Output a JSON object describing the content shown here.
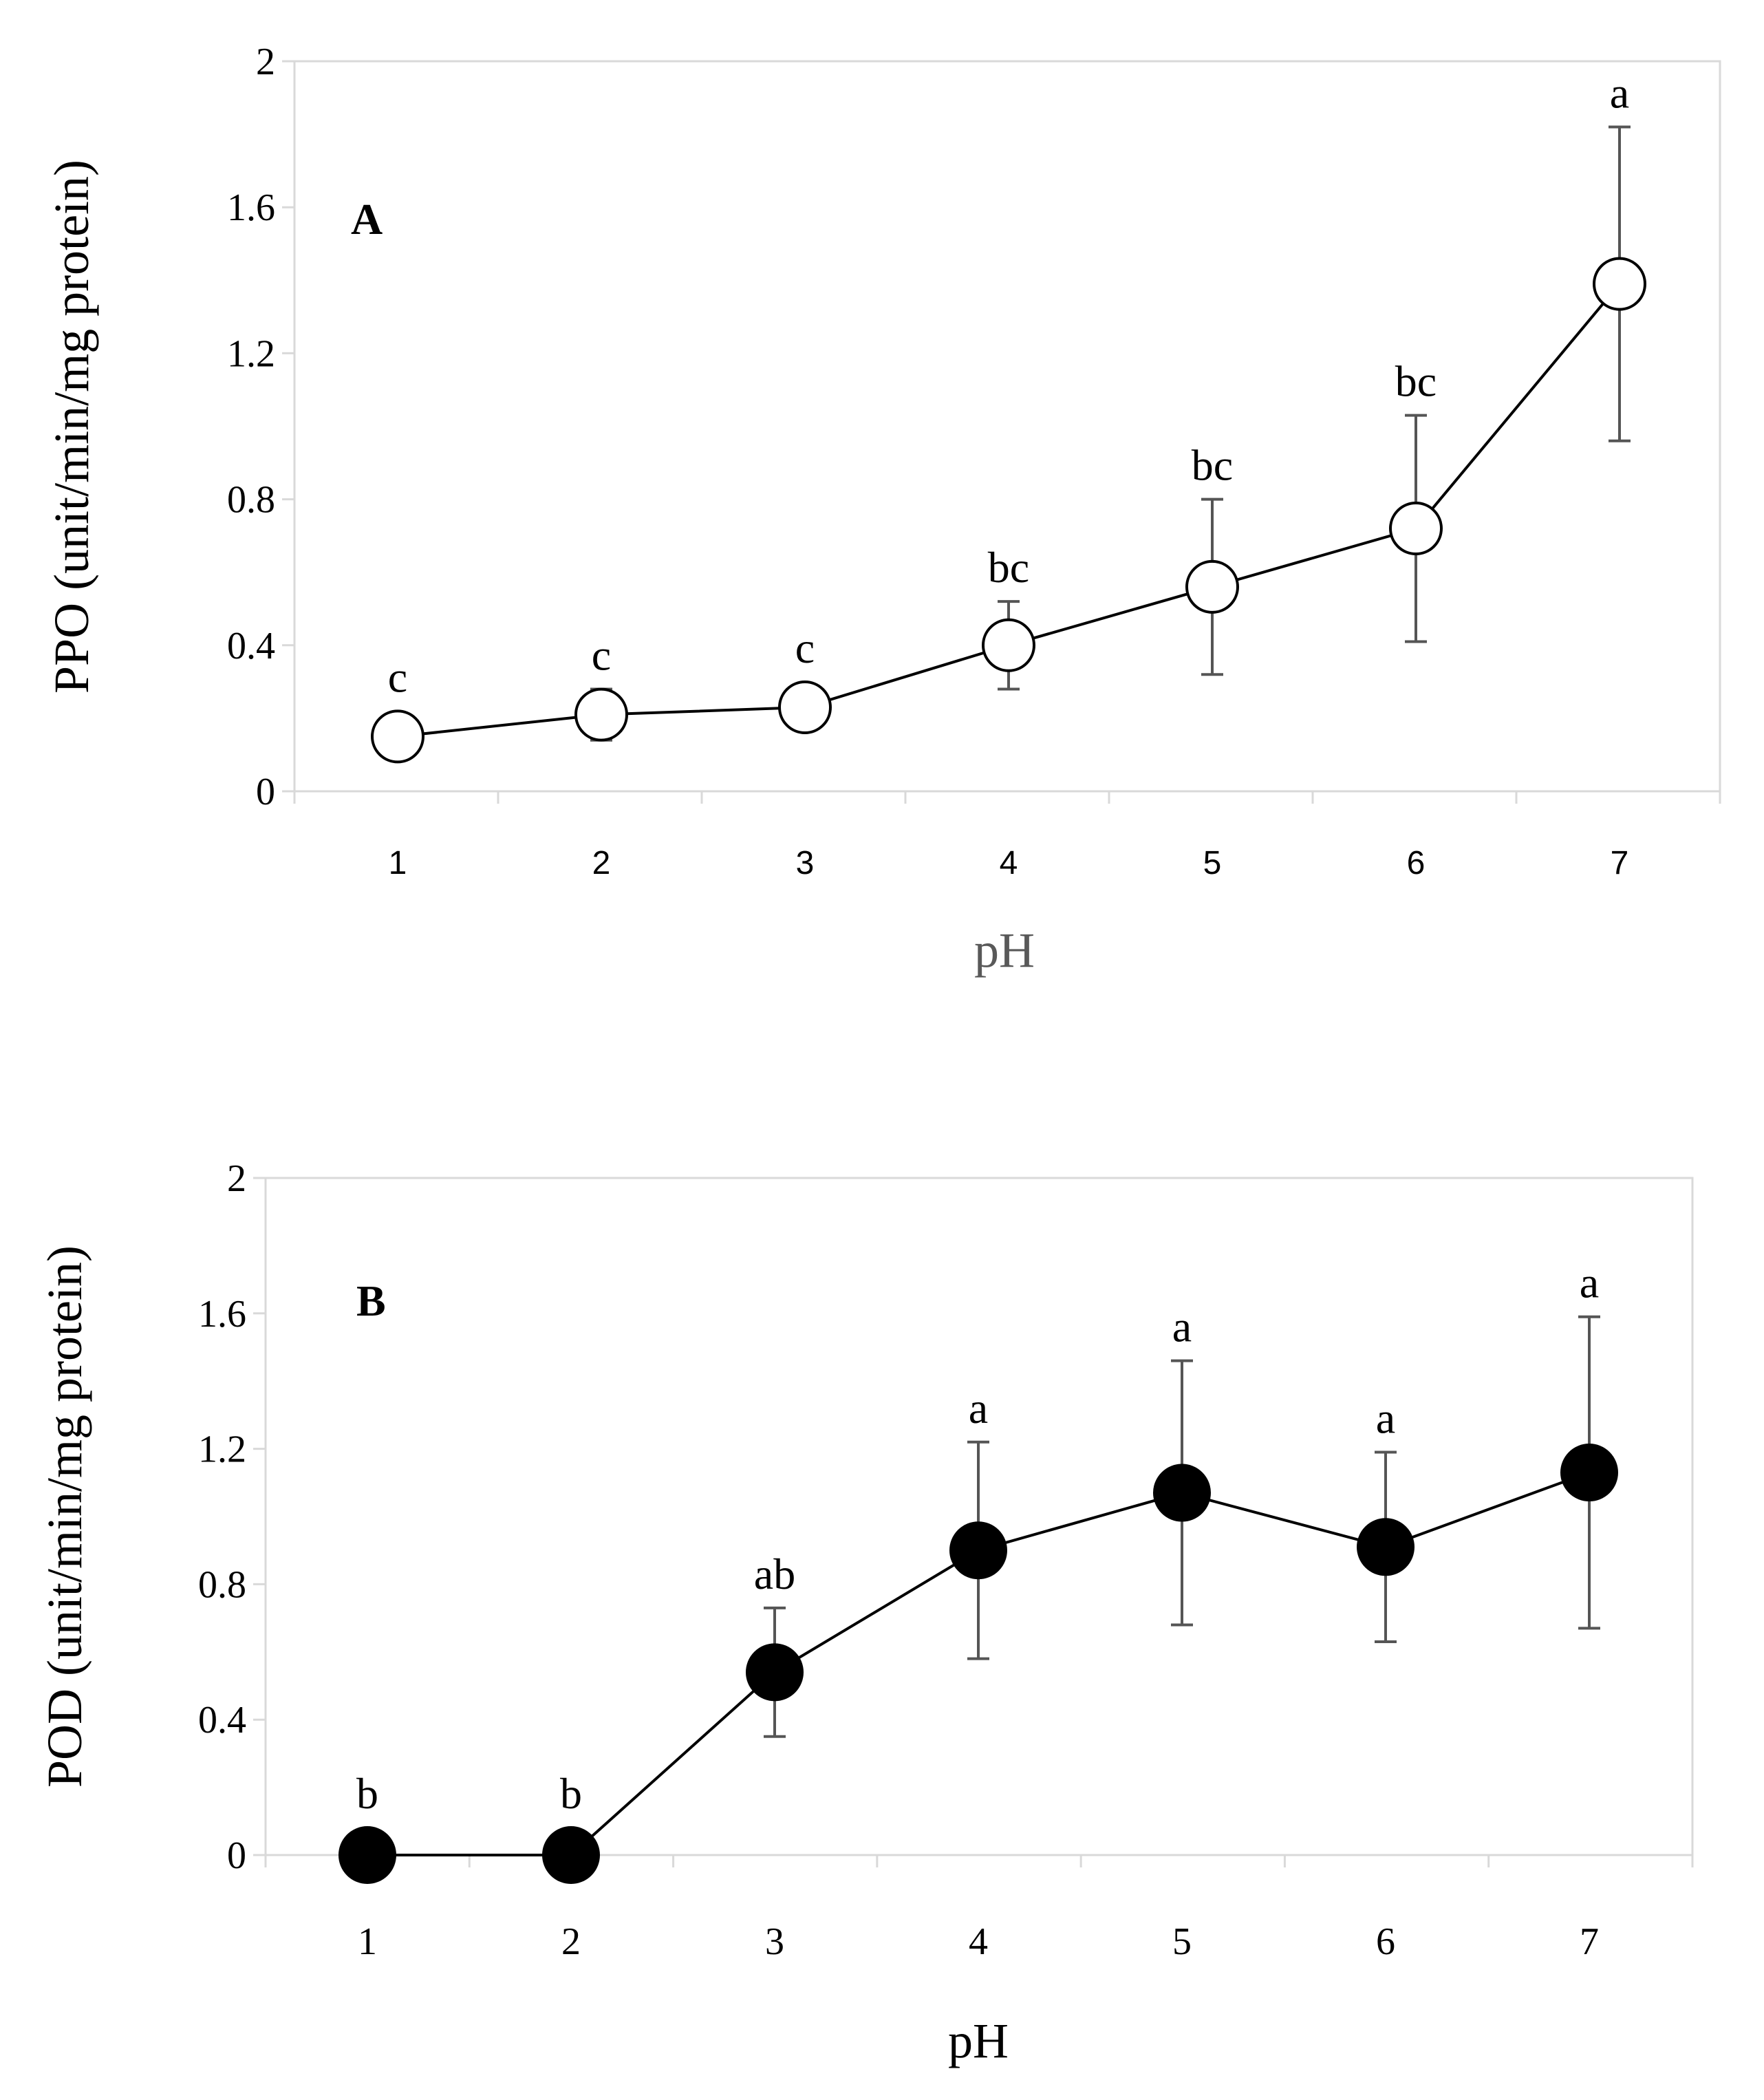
{
  "chart_data": [
    {
      "type": "line",
      "panel_label": "A",
      "xlabel": "pH",
      "ylabel": "PPO (unit/min/mg protein)",
      "ylim": [
        0,
        2
      ],
      "yticks": [
        "0",
        "0.4",
        "0.8",
        "1.2",
        "1.6",
        "2"
      ],
      "x": [
        1,
        2,
        3,
        4,
        5,
        6,
        7
      ],
      "xtick_labels": [
        "1",
        "2",
        "3",
        "4",
        "5",
        "6",
        "7"
      ],
      "values": [
        0.15,
        0.21,
        0.23,
        0.4,
        0.56,
        0.72,
        1.39
      ],
      "errors": [
        0.0,
        0.07,
        0.0,
        0.12,
        0.24,
        0.31,
        0.43
      ],
      "significance": [
        "c",
        "c",
        "c",
        "bc",
        "bc",
        "bc",
        "a"
      ],
      "marker": "open-circle",
      "line_color": "#000000",
      "error_color": "#555555",
      "frame_color": "#d9d9d9",
      "xlabel_color": "#595959"
    },
    {
      "type": "line",
      "panel_label": "B",
      "xlabel": "pH",
      "ylabel": "POD (unit/min/mg protein)",
      "ylim": [
        0,
        2
      ],
      "yticks": [
        "0",
        "0.4",
        "0.8",
        "1.2",
        "1.6",
        "2"
      ],
      "x": [
        1,
        2,
        3,
        4,
        5,
        6,
        7
      ],
      "xtick_labels": [
        "1",
        "2",
        "3",
        "4",
        "5",
        "6",
        "7"
      ],
      "values": [
        0.0,
        0.0,
        0.54,
        0.9,
        1.07,
        0.91,
        1.13
      ],
      "errors": [
        0.0,
        0.0,
        0.19,
        0.32,
        0.39,
        0.28,
        0.46
      ],
      "significance": [
        "b",
        "b",
        "ab",
        "a",
        "a",
        "a",
        "a"
      ],
      "marker": "filled-circle",
      "line_color": "#000000",
      "error_color": "#555555",
      "frame_color": "#d9d9d9",
      "xlabel_color": "#000000"
    }
  ]
}
